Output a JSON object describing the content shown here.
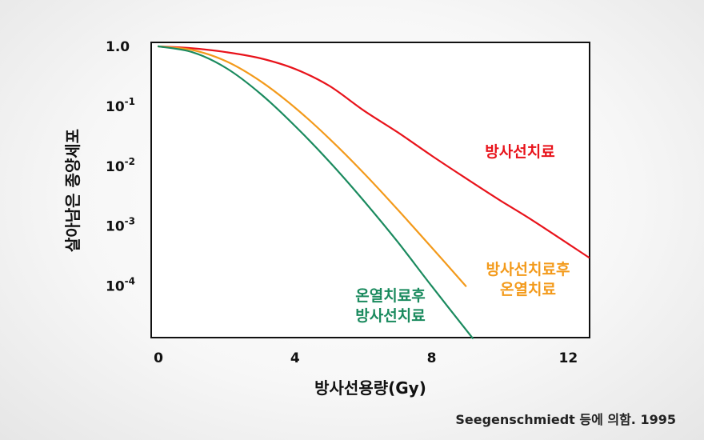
{
  "chart_data": {
    "type": "line",
    "xlabel": "방사선용량(Gy)",
    "ylabel": "살아남은 종양세포",
    "x_ticks": [
      "0",
      "4",
      "8",
      "12"
    ],
    "y_ticks": [
      {
        "base": "1.0",
        "exp": ""
      },
      {
        "base": "10",
        "exp": "-1"
      },
      {
        "base": "10",
        "exp": "-2"
      },
      {
        "base": "10",
        "exp": "-3"
      },
      {
        "base": "10",
        "exp": "-4"
      }
    ],
    "xlim": [
      0,
      12.6
    ],
    "ylim_log10": [
      -4.7,
      0
    ],
    "y_scale": "log",
    "grid": false,
    "series": [
      {
        "label_lines": [
          "방사선치료"
        ],
        "color": "#e8131b",
        "points": [
          [
            0,
            1.0
          ],
          [
            1,
            0.93
          ],
          [
            2,
            0.8
          ],
          [
            3,
            0.63
          ],
          [
            4,
            0.42
          ],
          [
            5,
            0.22
          ],
          [
            6,
            0.086
          ],
          [
            7,
            0.037
          ],
          [
            8,
            0.015
          ],
          [
            9,
            0.0063
          ],
          [
            10,
            0.0027
          ],
          [
            11,
            0.0012
          ],
          [
            12.6,
            0.0003
          ]
        ]
      },
      {
        "label_lines": [
          "방사선치료후",
          "온열치료"
        ],
        "color": "#f39a1b",
        "points": [
          [
            0,
            1.0
          ],
          [
            1,
            0.87
          ],
          [
            2,
            0.56
          ],
          [
            3,
            0.26
          ],
          [
            4,
            0.095
          ],
          [
            5,
            0.029
          ],
          [
            6,
            0.0078
          ],
          [
            7,
            0.0019
          ],
          [
            8,
            0.00044
          ],
          [
            9,
            0.0001
          ]
        ]
      },
      {
        "label_lines": [
          "온열치료후",
          "방사선치료"
        ],
        "color": "#1a8a5e",
        "points": [
          [
            0,
            1.0
          ],
          [
            1,
            0.8
          ],
          [
            2,
            0.43
          ],
          [
            3,
            0.16
          ],
          [
            4,
            0.047
          ],
          [
            5,
            0.012
          ],
          [
            6,
            0.0027
          ],
          [
            7,
            0.00055
          ],
          [
            8,
            0.0001
          ],
          [
            9.2,
            1.35e-05
          ]
        ]
      }
    ],
    "source": "Seegenschmiedt 등에 의함. 1995"
  }
}
